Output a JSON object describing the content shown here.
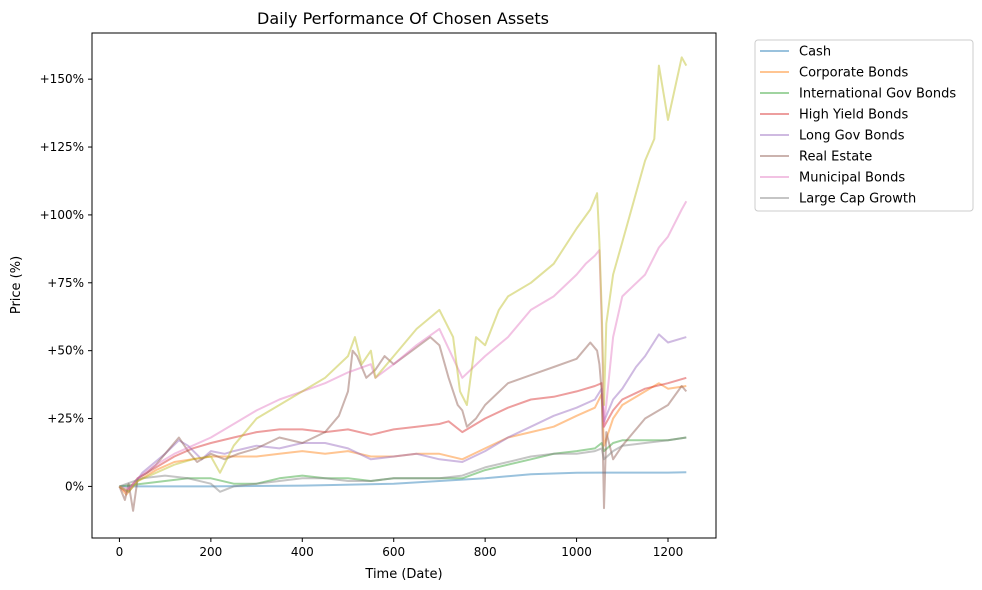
{
  "chart_data": {
    "type": "line",
    "title": "Daily Performance Of Chosen Assets",
    "xlabel": "Time (Date)",
    "ylabel": "Price (%)",
    "xlim": [
      -60,
      1305
    ],
    "ylim": [
      -19,
      167
    ],
    "xticks": [
      0,
      200,
      400,
      600,
      800,
      1000,
      1200
    ],
    "yticks": [
      0,
      25,
      50,
      75,
      100,
      125,
      150
    ],
    "ytick_labels": [
      "0%",
      "+25%",
      "+50%",
      "+75%",
      "+100%",
      "+125%",
      "+150%"
    ],
    "grid": false,
    "legend_position": "outside-upper-right",
    "series": [
      {
        "name": "Cash",
        "color": "#1f77b4",
        "x": [
          0,
          200,
          400,
          600,
          800,
          900,
          1000,
          1050,
          1100,
          1200,
          1240
        ],
        "y": [
          0,
          0,
          0.3,
          1,
          3,
          4.5,
          5,
          5.1,
          5.1,
          5.1,
          5.2
        ]
      },
      {
        "name": "Corporate Bonds",
        "color": "#ff7f0e",
        "x": [
          0,
          15,
          40,
          80,
          120,
          160,
          200,
          250,
          300,
          350,
          400,
          450,
          500,
          550,
          600,
          650,
          700,
          750,
          800,
          850,
          900,
          950,
          1000,
          1040,
          1055,
          1060,
          1080,
          1100,
          1150,
          1180,
          1200,
          1240
        ],
        "y": [
          0,
          -3,
          2,
          6,
          9,
          10,
          11,
          11,
          11,
          12,
          13,
          12,
          13,
          11,
          11,
          12,
          12,
          10,
          14,
          18,
          20,
          22,
          26,
          29,
          34,
          15,
          25,
          30,
          35,
          38,
          36,
          37
        ]
      },
      {
        "name": "International Gov Bonds",
        "color": "#2ca02c",
        "x": [
          0,
          50,
          100,
          150,
          200,
          250,
          300,
          350,
          400,
          450,
          500,
          550,
          600,
          650,
          700,
          750,
          800,
          850,
          900,
          950,
          1000,
          1040,
          1055,
          1060,
          1080,
          1100,
          1150,
          1200,
          1240
        ],
        "y": [
          0,
          1,
          2,
          3,
          3,
          1,
          1,
          3,
          4,
          3,
          3,
          2,
          3,
          3,
          3,
          3,
          6,
          8,
          10,
          12,
          13,
          14,
          16,
          13,
          16,
          17,
          17,
          17,
          18
        ]
      },
      {
        "name": "High Yield Bonds",
        "color": "#d62728",
        "x": [
          0,
          15,
          40,
          80,
          120,
          160,
          200,
          250,
          300,
          350,
          400,
          450,
          500,
          550,
          600,
          650,
          700,
          720,
          750,
          800,
          850,
          900,
          950,
          1000,
          1040,
          1055,
          1060,
          1080,
          1100,
          1150,
          1200,
          1240
        ],
        "y": [
          0,
          -2,
          3,
          7,
          11,
          14,
          16,
          18,
          20,
          21,
          21,
          20,
          21,
          19,
          21,
          22,
          23,
          24,
          20,
          25,
          29,
          32,
          33,
          35,
          37,
          38,
          22,
          28,
          32,
          36,
          38,
          40
        ]
      },
      {
        "name": "Long Gov Bonds",
        "color": "#9467bd",
        "x": [
          0,
          20,
          50,
          100,
          130,
          150,
          180,
          200,
          230,
          250,
          300,
          350,
          400,
          450,
          500,
          550,
          600,
          650,
          700,
          750,
          800,
          850,
          900,
          950,
          1000,
          1040,
          1055,
          1060,
          1080,
          1100,
          1130,
          1150,
          1180,
          1200,
          1240
        ],
        "y": [
          0,
          -2,
          5,
          12,
          17,
          15,
          10,
          13,
          12,
          13,
          15,
          14,
          16,
          16,
          14,
          10,
          11,
          12,
          10,
          9,
          13,
          18,
          22,
          26,
          29,
          32,
          36,
          24,
          32,
          36,
          44,
          48,
          56,
          53,
          55
        ]
      },
      {
        "name": "Real Estate",
        "color": "#8c564b",
        "x": [
          0,
          12,
          20,
          30,
          40,
          60,
          80,
          100,
          130,
          150,
          170,
          200,
          230,
          260,
          300,
          350,
          400,
          450,
          480,
          500,
          510,
          520,
          540,
          560,
          580,
          600,
          640,
          680,
          700,
          720,
          740,
          750,
          760,
          780,
          800,
          850,
          900,
          950,
          1000,
          1030,
          1045,
          1050,
          1055,
          1060,
          1065,
          1080,
          1100,
          1150,
          1200,
          1230,
          1240
        ],
        "y": [
          0,
          -5,
          1,
          -9,
          3,
          5,
          8,
          12,
          18,
          13,
          9,
          12,
          10,
          12,
          14,
          18,
          16,
          20,
          26,
          35,
          50,
          48,
          40,
          43,
          48,
          45,
          50,
          55,
          52,
          40,
          30,
          28,
          22,
          25,
          30,
          38,
          41,
          44,
          47,
          53,
          50,
          45,
          35,
          -8,
          20,
          10,
          15,
          25,
          30,
          37,
          35
        ]
      },
      {
        "name": "Municipal Bonds",
        "color": "#e377c2",
        "x": [
          0,
          20,
          40,
          80,
          120,
          160,
          200,
          250,
          300,
          350,
          400,
          450,
          500,
          550,
          560,
          600,
          650,
          700,
          750,
          800,
          850,
          900,
          950,
          1000,
          1020,
          1040,
          1050,
          1055,
          1060,
          1080,
          1100,
          1150,
          1180,
          1200,
          1230,
          1240
        ],
        "y": [
          0,
          -1,
          3,
          8,
          12,
          15,
          18,
          23,
          28,
          32,
          35,
          38,
          42,
          45,
          40,
          45,
          52,
          58,
          40,
          48,
          55,
          65,
          70,
          78,
          82,
          85,
          87,
          60,
          22,
          55,
          70,
          78,
          88,
          92,
          102,
          105
        ]
      },
      {
        "name": "Large Cap Growth",
        "color": "#7f7f7f",
        "x": [
          0,
          50,
          100,
          150,
          200,
          220,
          250,
          300,
          350,
          400,
          450,
          500,
          550,
          600,
          650,
          700,
          750,
          800,
          850,
          900,
          950,
          1000,
          1040,
          1055,
          1060,
          1080,
          1100,
          1150,
          1200,
          1240
        ],
        "y": [
          0,
          3,
          4,
          3,
          1,
          -2,
          0,
          1,
          2,
          3,
          3,
          2,
          2,
          3,
          3,
          3,
          4,
          7,
          9,
          11,
          12,
          12,
          13,
          14,
          10,
          13,
          15,
          16,
          17,
          18
        ]
      },
      {
        "name": "",
        "color": "#bcbd22",
        "x": [
          0,
          20,
          40,
          80,
          120,
          160,
          200,
          220,
          250,
          300,
          350,
          400,
          450,
          500,
          515,
          530,
          550,
          560,
          600,
          650,
          700,
          730,
          745,
          760,
          780,
          800,
          830,
          850,
          900,
          950,
          1000,
          1030,
          1045,
          1050,
          1055,
          1060,
          1065,
          1080,
          1100,
          1150,
          1170,
          1180,
          1200,
          1230,
          1240
        ],
        "y": [
          0,
          -2,
          2,
          5,
          8,
          10,
          11,
          5,
          15,
          25,
          30,
          35,
          40,
          48,
          55,
          45,
          50,
          40,
          48,
          58,
          65,
          55,
          35,
          30,
          55,
          52,
          65,
          70,
          75,
          82,
          95,
          102,
          108,
          90,
          65,
          30,
          60,
          78,
          90,
          120,
          128,
          155,
          135,
          158,
          155
        ]
      }
    ]
  }
}
